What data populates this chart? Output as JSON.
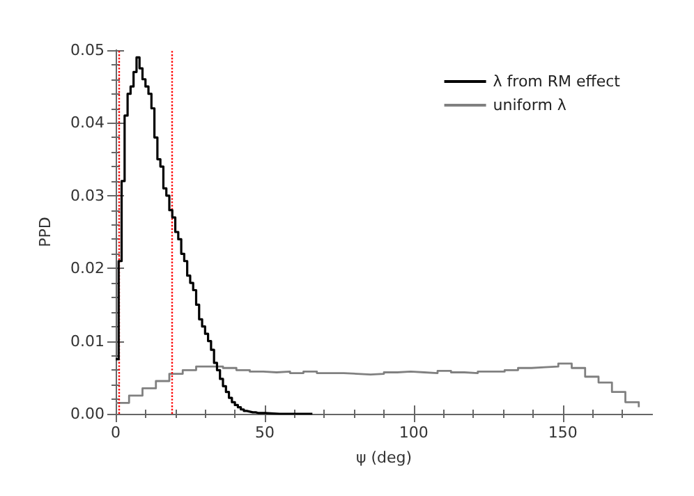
{
  "chart_data": {
    "type": "step",
    "xlabel": "ψ (deg)",
    "ylabel": "PPD",
    "xlim": [
      0,
      180
    ],
    "xticks": [
      0,
      50,
      100,
      150
    ],
    "ylim": [
      0,
      0.05
    ],
    "yticks": [
      {
        "value": 0,
        "label": "0.00"
      },
      {
        "value": 0.01,
        "label": "0.01"
      },
      {
        "value": 0.02,
        "label": "0.02"
      },
      {
        "value": 0.03,
        "label": "0.03"
      },
      {
        "value": 0.04,
        "label": "0.04"
      },
      {
        "value": 0.05,
        "label": "0.05"
      }
    ],
    "series": [
      {
        "name": "λ from RM effect",
        "color": "#000000",
        "x": [
          0,
          1,
          2,
          3,
          4,
          5,
          6,
          7,
          8,
          9,
          10,
          11,
          12,
          13,
          14,
          15,
          16,
          17,
          18,
          19,
          20,
          21,
          22,
          23,
          24,
          25,
          26,
          27,
          28,
          29,
          30,
          31,
          32,
          33,
          34,
          35,
          36,
          37,
          38,
          39,
          40,
          41,
          42,
          43,
          44,
          45,
          46,
          47,
          48,
          50,
          55,
          60,
          66
        ],
        "values": [
          0.0075,
          0.021,
          0.032,
          0.041,
          0.044,
          0.045,
          0.047,
          0.049,
          0.0475,
          0.046,
          0.045,
          0.044,
          0.042,
          0.038,
          0.035,
          0.034,
          0.031,
          0.03,
          0.028,
          0.027,
          0.025,
          0.024,
          0.022,
          0.021,
          0.019,
          0.018,
          0.017,
          0.015,
          0.013,
          0.012,
          0.011,
          0.01,
          0.0088,
          0.007,
          0.006,
          0.0048,
          0.0038,
          0.003,
          0.0022,
          0.0016,
          0.0012,
          0.0009,
          0.0006,
          0.0004,
          0.0003,
          0.0002,
          0.0002,
          0.0001,
          0.0001,
          0,
          0,
          0,
          0
        ]
      },
      {
        "name": "uniform λ",
        "color": "#808080",
        "x": [
          0,
          4.5,
          9,
          13.5,
          18,
          22.5,
          27,
          31.5,
          36,
          40.5,
          45,
          49.5,
          54,
          58.5,
          63,
          67.5,
          72,
          76.5,
          81,
          85.5,
          90,
          94.5,
          99,
          103.5,
          108,
          112.5,
          117,
          121.5,
          126,
          130.5,
          135,
          139.5,
          144,
          148.5,
          153,
          157.5,
          162,
          166.5,
          171,
          175.5
        ],
        "values": [
          0.0015,
          0.0025,
          0.0035,
          0.0045,
          0.0055,
          0.006,
          0.0065,
          0.0065,
          0.0063,
          0.006,
          0.0058,
          0.0057,
          0.0058,
          0.0056,
          0.0058,
          0.0056,
          0.0056,
          0.0055,
          0.0054,
          0.0055,
          0.0057,
          0.0058,
          0.0057,
          0.0056,
          0.0059,
          0.0057,
          0.0056,
          0.0058,
          0.0058,
          0.006,
          0.0063,
          0.0064,
          0.0065,
          0.0069,
          0.0063,
          0.0051,
          0.0043,
          0.003,
          0.0016,
          0.0009
        ]
      }
    ],
    "ref_lines": [
      {
        "axis": "x",
        "value": 1,
        "color": "#ff0000",
        "line_style": "dotted"
      },
      {
        "axis": "x",
        "value": 19,
        "color": "#ff0000",
        "line_style": "dotted"
      }
    ],
    "legend": "top right",
    "grid": false
  }
}
